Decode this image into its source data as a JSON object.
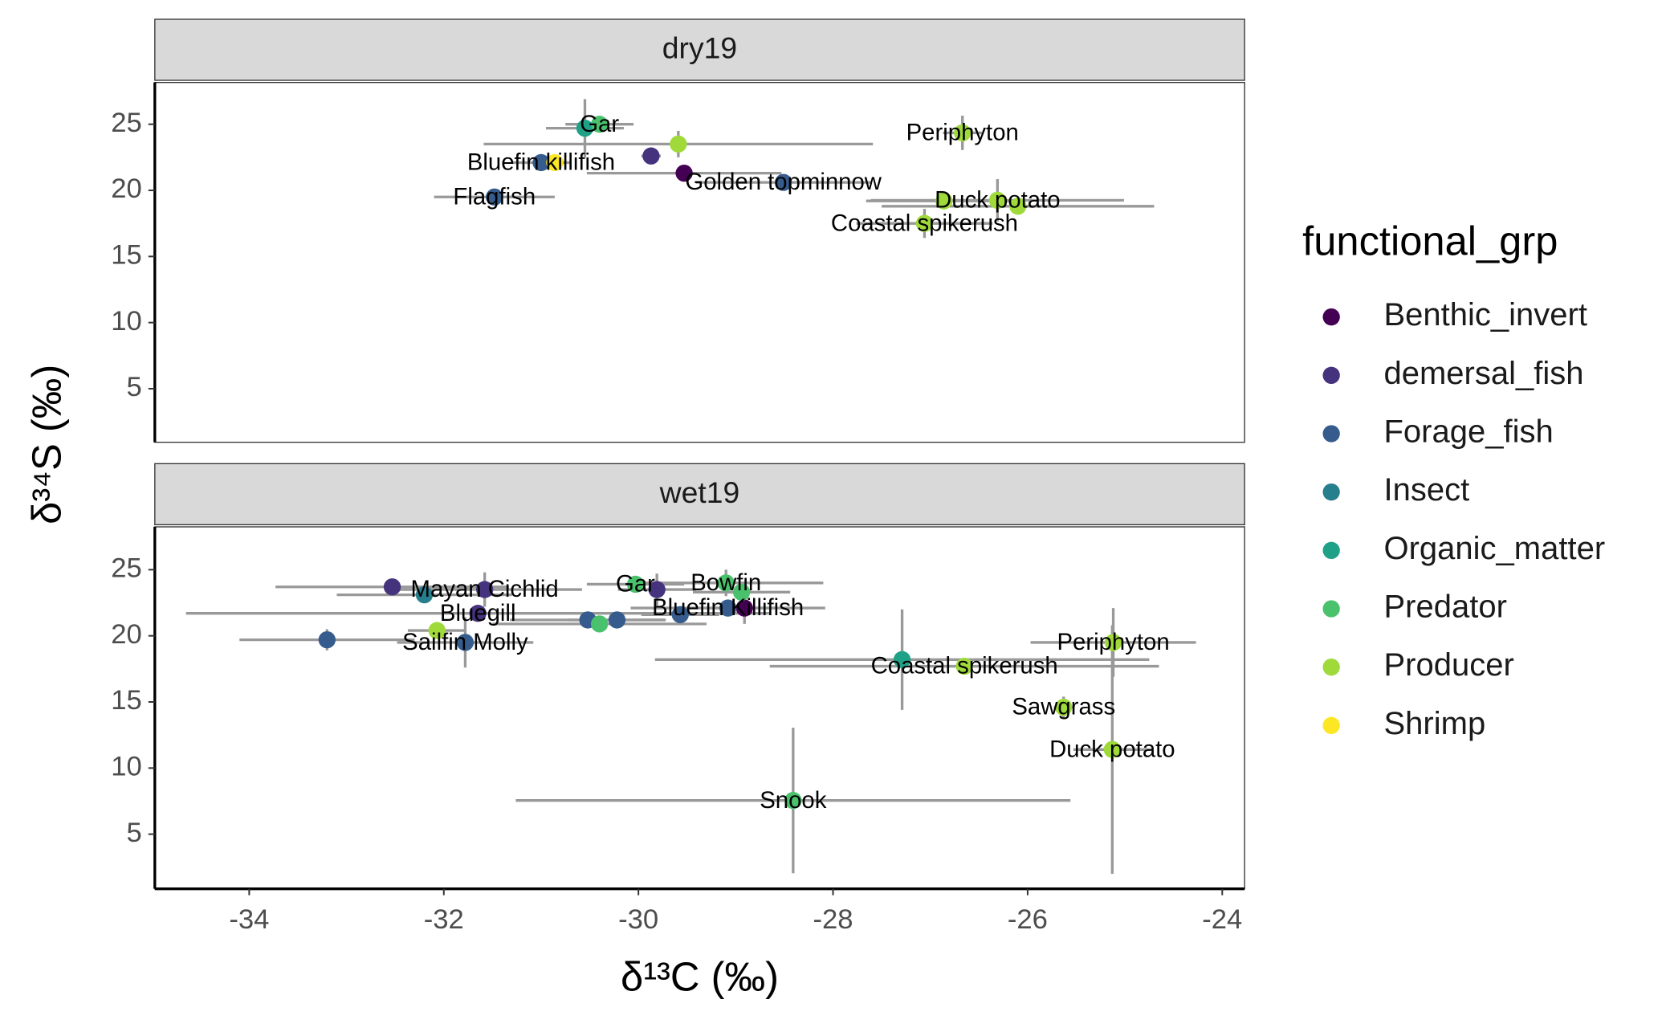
{
  "chart_data": [
    {
      "type": "scatter",
      "title": "dry19",
      "ylabel": "δ³⁴S (‰)",
      "legend_title": "functional_grp",
      "legend": "right",
      "xlim": [
        -34.97,
        -23.77
      ],
      "ylim": [
        0.95,
        28.16
      ],
      "yticks": [
        5,
        10,
        15,
        20,
        25
      ],
      "series": [
        {
          "name": "Benthic_invert",
          "color": "#440154",
          "x": [
            -29.53
          ],
          "y": [
            21.3
          ],
          "xerr": [
            1.0
          ],
          "yerr": [
            0.5
          ],
          "labels": [
            null
          ]
        },
        {
          "name": "demersal_fish",
          "color": "#46337E",
          "x": [
            -29.87
          ],
          "y": [
            22.6
          ],
          "xerr": [
            0.1
          ],
          "yerr": [
            0.2
          ],
          "labels": [
            null
          ]
        },
        {
          "name": "Forage_fish",
          "color": "#365C8D",
          "x": [
            -31.0,
            -31.48,
            -28.51
          ],
          "y": [
            22.1,
            19.5,
            20.6
          ],
          "xerr": [
            0.3,
            0.62,
            0.9
          ],
          "yerr": [
            0.3,
            0.5,
            0.3
          ],
          "labels": [
            "Bluefin killifish",
            "Flagfish",
            "Golden topminnow"
          ]
        },
        {
          "name": "Insect",
          "color": "#277F8E",
          "x": [],
          "y": [],
          "xerr": [],
          "yerr": [],
          "labels": []
        },
        {
          "name": "Organic_matter",
          "color": "#1FA187",
          "x": [
            -30.55
          ],
          "y": [
            24.7
          ],
          "xerr": [
            0.4
          ],
          "yerr": [
            2.2
          ],
          "labels": [
            null
          ]
        },
        {
          "name": "Predator",
          "color": "#4AC16D",
          "x": [
            -30.4
          ],
          "y": [
            25.0
          ],
          "xerr": [
            0.35
          ],
          "yerr": [
            0.3
          ],
          "labels": [
            "Gar"
          ]
        },
        {
          "name": "Producer",
          "color": "#9FDA3A",
          "x": [
            -26.67,
            -29.59,
            -26.31,
            -26.1,
            -26.86,
            -27.06
          ],
          "y": [
            24.35,
            23.5,
            19.25,
            18.8,
            19.2,
            17.5
          ],
          "xerr": [
            0.2,
            2.0,
            1.3,
            1.4,
            0.8,
            0.7
          ],
          "yerr": [
            1.3,
            1.0,
            1.6,
            0.4,
            0.3,
            1.1
          ],
          "labels": [
            "Periphyton",
            null,
            "Duck potato",
            null,
            null,
            "Coastal spikerush"
          ]
        },
        {
          "name": "Shrimp",
          "color": "#FDE725",
          "x": [
            -30.86
          ],
          "y": [
            22.1
          ],
          "xerr": [
            0.1
          ],
          "yerr": [
            0.2
          ],
          "labels": [
            null
          ]
        }
      ]
    },
    {
      "type": "scatter",
      "title": "wet19",
      "xlabel": "δ¹³C (‰)",
      "xlim": [
        -34.97,
        -23.77
      ],
      "ylim": [
        0.87,
        28.24
      ],
      "xticks": [
        -34,
        -32,
        -30,
        -28,
        -26,
        -24
      ],
      "yticks": [
        5,
        10,
        15,
        20,
        25
      ],
      "series": [
        {
          "name": "Benthic_invert",
          "color": "#440154",
          "x": [
            -28.91
          ],
          "y": [
            22.1
          ],
          "xerr": [
            0.3
          ],
          "yerr": [
            1.2
          ],
          "labels": [
            null
          ]
        },
        {
          "name": "demersal_fish",
          "color": "#46337E",
          "x": [
            -32.53,
            -31.58,
            -31.65,
            -29.81
          ],
          "y": [
            23.7,
            23.5,
            21.7,
            23.5
          ],
          "xerr": [
            1.2,
            1.0,
            3.0,
            0.4
          ],
          "yerr": [
            0.2,
            1.3,
            0.3,
            1.2
          ],
          "labels": [
            null,
            "Mayan Cichlid",
            "Bluegill",
            null
          ]
        },
        {
          "name": "Forage_fish",
          "color": "#365C8D",
          "x": [
            -33.2,
            -31.78,
            -30.52,
            -30.22,
            -29.57,
            -29.08
          ],
          "y": [
            19.7,
            19.5,
            21.2,
            21.2,
            21.6,
            22.1
          ],
          "xerr": [
            0.9,
            0.7,
            0.8,
            0.5,
            0.4,
            1.0
          ],
          "yerr": [
            0.8,
            1.9,
            0.3,
            0.3,
            0.3,
            0.3
          ],
          "labels": [
            null,
            "Sailfin Molly",
            null,
            null,
            null,
            "Bluefin Killifish"
          ]
        },
        {
          "name": "Insect",
          "color": "#277F8E",
          "x": [
            -32.2
          ],
          "y": [
            23.1
          ],
          "xerr": [
            0.9
          ],
          "yerr": [
            0.3
          ],
          "labels": [
            null
          ]
        },
        {
          "name": "Organic_matter",
          "color": "#1FA187",
          "x": [
            -27.29
          ],
          "y": [
            18.2
          ],
          "xerr": [
            2.54
          ],
          "yerr": [
            3.8
          ],
          "labels": [
            null
          ]
        },
        {
          "name": "Predator",
          "color": "#4AC16D",
          "x": [
            -30.03,
            -29.1,
            -28.94,
            -30.4,
            -28.41
          ],
          "y": [
            23.9,
            24.0,
            23.3,
            20.9,
            7.55
          ],
          "xerr": [
            0.5,
            1.0,
            0.5,
            1.1,
            2.85
          ],
          "yerr": [
            0.6,
            1.0,
            0.4,
            0.3,
            5.5
          ],
          "labels": [
            "Gar",
            "Bowfin",
            null,
            null,
            "Snook"
          ]
        },
        {
          "name": "Producer",
          "color": "#9FDA3A",
          "x": [
            -32.07,
            -25.12,
            -26.65,
            -25.63,
            -25.13
          ],
          "y": [
            20.4,
            19.5,
            17.7,
            14.6,
            11.4
          ],
          "xerr": [
            0.3,
            0.85,
            2.0,
            0.1,
            0.4
          ],
          "yerr": [
            0.3,
            2.6,
            0.4,
            0.8,
            9.4
          ],
          "labels": [
            null,
            "Periphyton",
            "Coastal spikerush",
            "Sawgrass",
            "Duck potato"
          ]
        },
        {
          "name": "Shrimp",
          "color": "#FDE725",
          "x": [],
          "y": [],
          "xerr": [],
          "yerr": [],
          "labels": []
        }
      ]
    }
  ]
}
